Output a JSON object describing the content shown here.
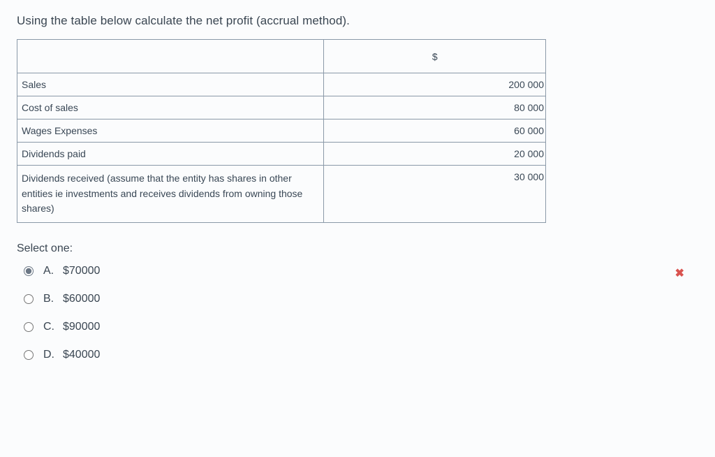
{
  "question": {
    "text": "Using the table below calculate the net profit (accrual method)."
  },
  "table": {
    "header_label": "",
    "header_value": "$",
    "col_label_width": 440,
    "col_value_width": 318,
    "border_color": "#8a99a8",
    "rows": [
      {
        "label": "Sales",
        "value": "200 000"
      },
      {
        "label": "Cost of sales",
        "value": "80 000"
      },
      {
        "label": "Wages Expenses",
        "value": "60 000"
      },
      {
        "label": "Dividends paid",
        "value": "20 000"
      },
      {
        "label": "Dividends received (assume that the entity has shares in other entities ie investments and receives dividends from owning those shares)",
        "value": "30 000"
      }
    ]
  },
  "prompt": {
    "select_one": "Select one:"
  },
  "options": [
    {
      "letter": "A.",
      "text": "$70000",
      "selected": true,
      "feedback": "incorrect"
    },
    {
      "letter": "B.",
      "text": "$60000",
      "selected": false,
      "feedback": null
    },
    {
      "letter": "C.",
      "text": "$90000",
      "selected": false,
      "feedback": null
    },
    {
      "letter": "D.",
      "text": "$40000",
      "selected": false,
      "feedback": null
    }
  ],
  "icons": {
    "incorrect": "✖"
  },
  "colors": {
    "background": "#fbfcfd",
    "text": "#3a4a5a",
    "border": "#8a99a8",
    "incorrect": "#d9534f"
  }
}
